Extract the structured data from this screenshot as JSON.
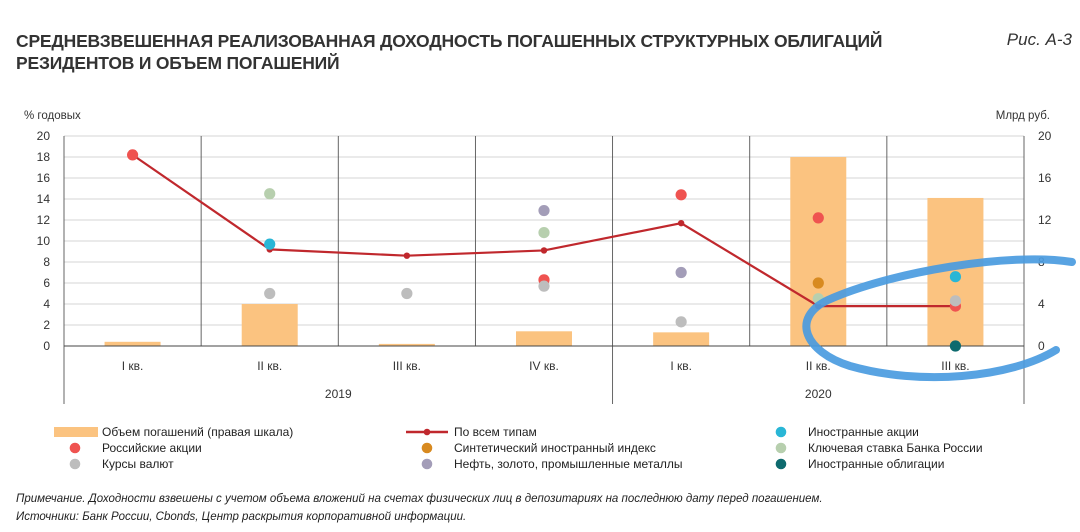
{
  "title": "СРЕДНЕВЗВЕШЕННАЯ РЕАЛИЗОВАННАЯ ДОХОДНОСТЬ ПОГАШЕННЫХ СТРУКТУРНЫХ ОБЛИГАЦИЙ РЕЗИДЕНТОВ И ОБЪЕМ ПОГАШЕНИЙ",
  "figure_label": "Рис. А-3",
  "note": "Примечание. Доходности взвешены с учетом объема вложений на счетах физических лиц в депозитариях на последнюю дату перед погашением.",
  "sources": "Источники: Банк России, Cbonds, Центр раскрытия корпоративной информации.",
  "colors": {
    "bars": "#fbc380",
    "line": "#c0282d",
    "ru_stocks": "#ef5350",
    "fx": "#bdbdbd",
    "synthetic": "#d88a20",
    "commodities": "#a39db8",
    "foreign_stocks": "#29b6d6",
    "key_rate": "#b7cfae",
    "foreign_bonds": "#0e6a6e",
    "annotation": "#4a9be0"
  },
  "chart_data": {
    "type": "bar+line+scatter",
    "categories": [
      "I кв.",
      "II кв.",
      "III кв.",
      "IV кв.",
      "I кв.",
      "II кв.",
      "III кв."
    ],
    "year_groups": [
      {
        "label": "2019",
        "from": 0,
        "to": 3
      },
      {
        "label": "2020",
        "from": 4,
        "to": 6
      }
    ],
    "ylabel": "% годовых",
    "y2label": "Млрд руб.",
    "ylim": [
      0,
      20
    ],
    "y2lim": [
      0,
      20
    ],
    "yticks": [
      0,
      2,
      4,
      6,
      8,
      10,
      12,
      14,
      16,
      18,
      20
    ],
    "y2ticks": [
      0,
      4,
      8,
      12,
      16,
      20
    ],
    "grid": true,
    "bars": {
      "name": "Объем погашений (правая шкала)",
      "axis": "right",
      "values": [
        0.4,
        4.0,
        0.2,
        1.4,
        1.3,
        18.0,
        14.1
      ]
    },
    "line": {
      "name": "По всем типам",
      "values": [
        18.2,
        9.2,
        8.6,
        9.1,
        11.7,
        3.8,
        3.8
      ]
    },
    "scatter": [
      {
        "name": "Российские акции",
        "key": "ru_stocks",
        "points": [
          [
            0,
            18.2
          ],
          [
            3,
            6.3
          ],
          [
            4,
            14.4
          ],
          [
            5,
            12.2
          ],
          [
            6,
            3.8
          ]
        ]
      },
      {
        "name": "Курсы валют",
        "key": "fx",
        "points": [
          [
            1,
            5.0
          ],
          [
            2,
            5.0
          ],
          [
            3,
            5.7
          ],
          [
            4,
            2.3
          ],
          [
            6,
            4.3
          ]
        ]
      },
      {
        "name": "Синтетический иностранный индекс",
        "key": "synthetic",
        "points": [
          [
            5,
            6.0
          ]
        ]
      },
      {
        "name": "Нефть, золото, промышленные металлы",
        "key": "commodities",
        "points": [
          [
            3,
            12.9
          ],
          [
            4,
            7.0
          ]
        ]
      },
      {
        "name": "Иностранные акции",
        "key": "foreign_stocks",
        "points": [
          [
            1,
            9.7
          ],
          [
            6,
            6.6
          ]
        ]
      },
      {
        "name": "Ключевая ставка Банка России",
        "key": "key_rate",
        "points": [
          [
            1,
            14.5
          ],
          [
            3,
            10.8
          ],
          [
            5,
            4.5
          ]
        ]
      },
      {
        "name": "Иностранные облигации",
        "key": "foreign_bonds",
        "points": [
          [
            6,
            0.0
          ]
        ]
      }
    ],
    "legend": [
      {
        "label": "Объем погашений (правая шкала)",
        "type": "bar",
        "key": "bars"
      },
      {
        "label": "Российские акции",
        "type": "dot",
        "key": "ru_stocks"
      },
      {
        "label": "Курсы валют",
        "type": "dot",
        "key": "fx"
      },
      {
        "label": "По всем типам",
        "type": "line",
        "key": "line"
      },
      {
        "label": "Синтетический иностранный индекс",
        "type": "dot",
        "key": "synthetic"
      },
      {
        "label": "Нефть, золото, промышленные металлы",
        "type": "dot",
        "key": "commodities"
      },
      {
        "label": "Иностранные акции",
        "type": "dot",
        "key": "foreign_stocks"
      },
      {
        "label": "Ключевая ставка Банка России",
        "type": "dot",
        "key": "key_rate"
      },
      {
        "label": "Иностранные облигации",
        "type": "dot",
        "key": "foreign_bonds"
      }
    ],
    "legend_position": "bottom"
  }
}
